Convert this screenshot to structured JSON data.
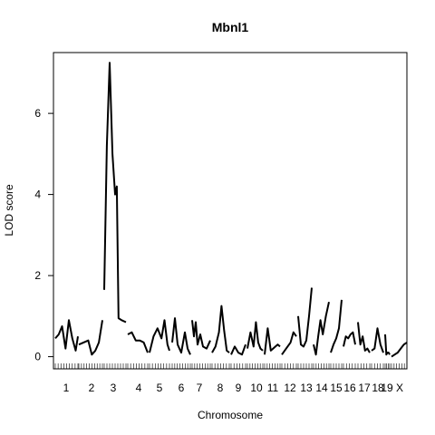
{
  "chart_data": {
    "type": "line",
    "title": "Mbnl1",
    "xlabel": "Chromosome",
    "ylabel": "LOD score",
    "ylim": [
      -0.3,
      7.5
    ],
    "yticks": [
      0,
      2,
      4,
      6
    ],
    "grid": false,
    "legend": "none",
    "line_color": "#000000",
    "chromosomes": [
      {
        "label": "1",
        "x": [
          0,
          0.15,
          0.3,
          0.45,
          0.6,
          0.75,
          0.9,
          1.0
        ],
        "y": [
          0.45,
          0.55,
          0.75,
          0.2,
          0.9,
          0.45,
          0.15,
          0.5
        ]
      },
      {
        "label": "2",
        "x": [
          0,
          0.2,
          0.4,
          0.55,
          0.7,
          0.85,
          1.0
        ],
        "y": [
          0.3,
          0.35,
          0.4,
          0.05,
          0.15,
          0.35,
          0.9
        ]
      },
      {
        "label": "3",
        "x": [
          0,
          0.12,
          0.25,
          0.38,
          0.5,
          0.58,
          0.66,
          0.8,
          1.0
        ],
        "y": [
          1.65,
          5.2,
          7.25,
          5.0,
          4.0,
          4.2,
          0.95,
          0.9,
          0.85
        ]
      },
      {
        "label": "4",
        "x": [
          0,
          0.2,
          0.4,
          0.6,
          0.8,
          1.0
        ],
        "y": [
          0.55,
          0.6,
          0.4,
          0.4,
          0.35,
          0.1
        ]
      },
      {
        "label": "5",
        "x": [
          0,
          0.2,
          0.4,
          0.6,
          0.75,
          0.9,
          1.0
        ],
        "y": [
          0.1,
          0.5,
          0.7,
          0.45,
          0.9,
          0.3,
          0.15
        ]
      },
      {
        "label": "6",
        "x": [
          0,
          0.15,
          0.3,
          0.5,
          0.7,
          0.85,
          1.0
        ],
        "y": [
          0.35,
          0.95,
          0.3,
          0.1,
          0.6,
          0.2,
          0.05
        ]
      },
      {
        "label": "7",
        "x": [
          0,
          0.1,
          0.2,
          0.3,
          0.45,
          0.6,
          0.8,
          1.0
        ],
        "y": [
          0.9,
          0.5,
          0.85,
          0.3,
          0.55,
          0.25,
          0.2,
          0.4
        ]
      },
      {
        "label": "8",
        "x": [
          0,
          0.2,
          0.4,
          0.55,
          0.7,
          0.85,
          1.0
        ],
        "y": [
          0.1,
          0.25,
          0.6,
          1.25,
          0.65,
          0.15,
          0.1
        ]
      },
      {
        "label": "9",
        "x": [
          0,
          0.25,
          0.5,
          0.75,
          1.0
        ],
        "y": [
          0.05,
          0.25,
          0.1,
          0.05,
          0.3
        ]
      },
      {
        "label": "10",
        "x": [
          0,
          0.2,
          0.4,
          0.55,
          0.7,
          0.85,
          1.0
        ],
        "y": [
          0.2,
          0.6,
          0.25,
          0.85,
          0.35,
          0.2,
          0.15
        ]
      },
      {
        "label": "11",
        "x": [
          0,
          0.2,
          0.4,
          0.55,
          0.7,
          0.85,
          1.0
        ],
        "y": [
          0.05,
          0.7,
          0.15,
          0.2,
          0.25,
          0.3,
          0.25
        ]
      },
      {
        "label": "12",
        "x": [
          0,
          0.3,
          0.6,
          0.8,
          1.0
        ],
        "y": [
          0.05,
          0.2,
          0.35,
          0.6,
          0.5
        ]
      },
      {
        "label": "13",
        "x": [
          0,
          0.2,
          0.4,
          0.6,
          0.8,
          1.0
        ],
        "y": [
          1.0,
          0.3,
          0.25,
          0.4,
          1.0,
          1.7
        ]
      },
      {
        "label": "14",
        "x": [
          0,
          0.15,
          0.3,
          0.45,
          0.6,
          0.8,
          1.0
        ],
        "y": [
          0.3,
          0.05,
          0.5,
          0.9,
          0.55,
          1.0,
          1.35
        ]
      },
      {
        "label": "15",
        "x": [
          0,
          0.25,
          0.5,
          0.75,
          1.0
        ],
        "y": [
          0.1,
          0.3,
          0.45,
          0.7,
          1.4
        ]
      },
      {
        "label": "16",
        "x": [
          0,
          0.2,
          0.4,
          0.6,
          0.8,
          1.0
        ],
        "y": [
          0.25,
          0.5,
          0.45,
          0.55,
          0.6,
          0.3
        ]
      },
      {
        "label": "17",
        "x": [
          0,
          0.2,
          0.4,
          0.6,
          0.8,
          1.0
        ],
        "y": [
          0.85,
          0.3,
          0.5,
          0.15,
          0.2,
          0.1
        ]
      },
      {
        "label": "18",
        "x": [
          0,
          0.25,
          0.5,
          0.75,
          1.0
        ],
        "y": [
          0.15,
          0.2,
          0.7,
          0.3,
          0.1
        ]
      },
      {
        "label": "19",
        "x": [
          0,
          0.25,
          0.5,
          0.75,
          1.0
        ],
        "y": [
          0.55,
          0.05,
          0.1,
          0.1,
          0.05
        ]
      },
      {
        "label": "X",
        "x": [
          0,
          0.2,
          0.4,
          0.6,
          0.8,
          1.0
        ],
        "y": [
          0.0,
          0.05,
          0.1,
          0.2,
          0.3,
          0.35
        ]
      }
    ]
  }
}
